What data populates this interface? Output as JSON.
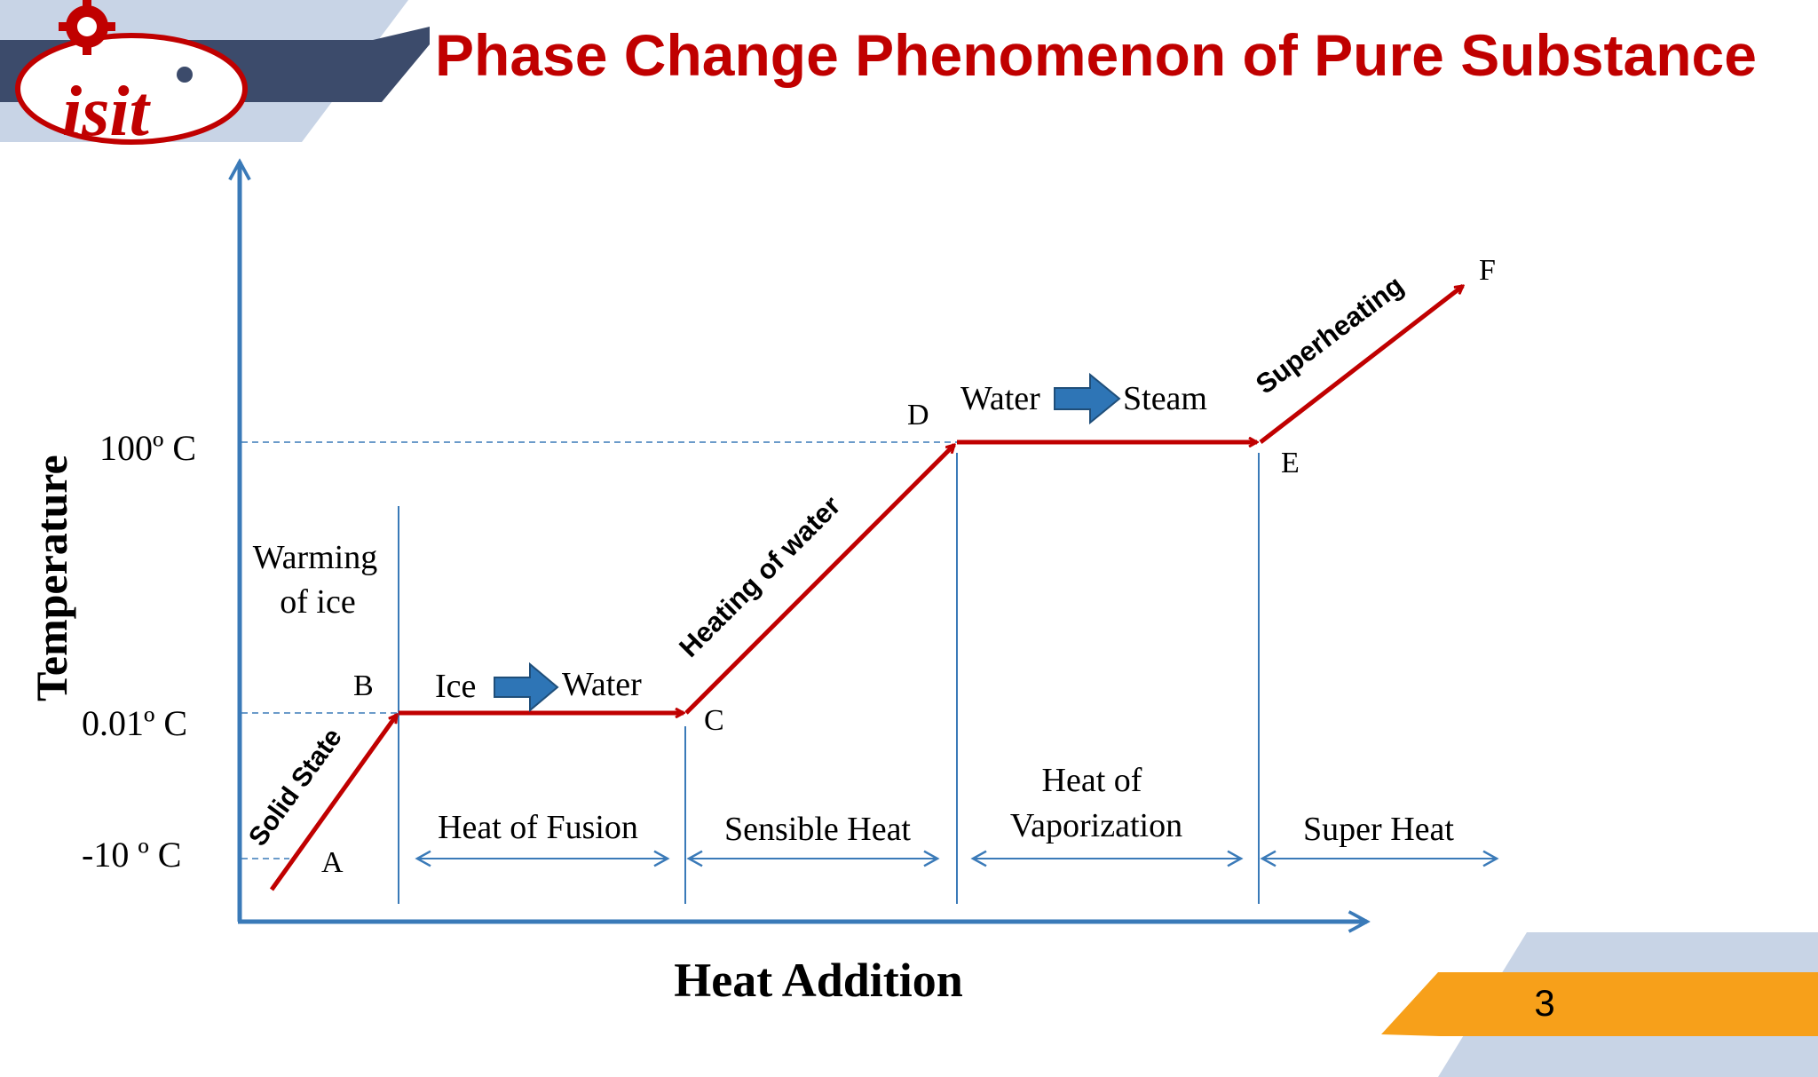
{
  "slide": {
    "title": "Phase Change Phenomenon of Pure Substance",
    "logo_text": "isit",
    "page_number": "3"
  },
  "diagram": {
    "y_axis_label": "Temperature",
    "x_axis_label": "Heat Addition",
    "temperature_levels": [
      "100º C",
      "0.01º  C",
      "-10 º  C"
    ],
    "points": [
      "A",
      "B",
      "C",
      "D",
      "E",
      "F"
    ],
    "segment_labels": {
      "solid_state": "Solid State",
      "heating_of_water": "Heating of water",
      "superheating": "Superheating"
    },
    "phase_transitions": {
      "fusion": {
        "from": "Ice",
        "to": "Water"
      },
      "vaporization": {
        "from": "Water",
        "to": "Steam"
      }
    },
    "warming_of_ice": [
      "Warming",
      "of ice"
    ],
    "regions": {
      "heat_of_fusion": "Heat of Fusion",
      "sensible_heat": "Sensible Heat",
      "heat_of_vaporization": [
        "Heat of",
        "Vaporization"
      ],
      "super_heat": "Super Heat"
    }
  },
  "colors": {
    "title": "#c00000",
    "curve": "#c00000",
    "axis": "#3a7ab8",
    "block_arrow": "#2e75b6",
    "banner_dark": "#3c4b6b",
    "banner_light": "#c8d4e6",
    "footer_orange": "#f7a01a"
  }
}
